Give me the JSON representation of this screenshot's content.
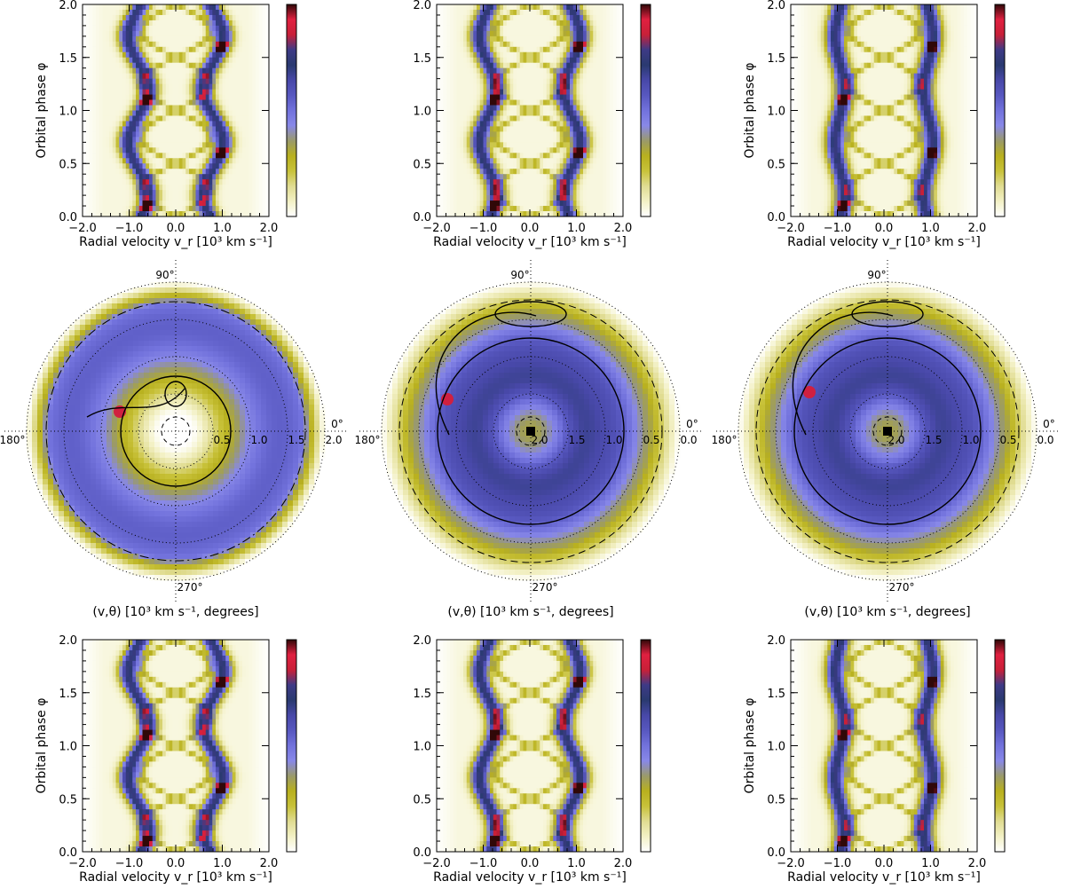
{
  "colors": {
    "colormap": [
      "#ffffff",
      "#f3f1c6",
      "#e0dc92",
      "#c8c23a",
      "#b8b01e",
      "#9a9a6a",
      "#8888e8",
      "#7272dc",
      "#5858c0",
      "#4848a8",
      "#2a3a70",
      "#3e3a86",
      "#c82038",
      "#e02040",
      "#300808"
    ],
    "curve": "#000000"
  },
  "labels": {
    "tomogram_xlabel": "(v,θ) [10³ km s⁻¹, degrees]",
    "trail_xlabel": "Radial velocity v_r [10³ km s⁻¹]",
    "trail_ylabel": "Orbital phase φ",
    "angle_90": "90°",
    "angle_0": "0°",
    "angle_180": "180°",
    "angle_270": "270°"
  },
  "chart_data": [
    {
      "id": "trail-top-1",
      "type": "heatmap",
      "xlabel": "Radial velocity v_r [10³ km s⁻¹]",
      "ylabel": "Orbital phase φ",
      "xlim": [
        -2.0,
        2.0
      ],
      "ylim": [
        0.0,
        2.0
      ],
      "xticks": [
        "−2.0",
        "−1.0",
        "0.0",
        "1.0",
        "2.0"
      ],
      "yticks": [
        "0.0",
        "0.5",
        "1.0",
        "1.5",
        "2.0"
      ],
      "s_waves": [
        {
          "center": -0.8,
          "amplitude": 0.22,
          "phase0": 0.05
        },
        {
          "center": 0.8,
          "amplitude": 0.22,
          "phase0": 0.55
        }
      ],
      "colorbar": true
    },
    {
      "id": "trail-top-2",
      "type": "heatmap",
      "xlabel": "Radial velocity v_r [10³ km s⁻¹]",
      "ylabel": "",
      "xlim": [
        -2.0,
        2.0
      ],
      "ylim": [
        0.0,
        2.0
      ],
      "xticks": [
        "−2.0",
        "−1.0",
        "0.0",
        "1.0",
        "2.0"
      ],
      "yticks": [
        "0.0",
        "0.5",
        "1.0",
        "1.5",
        "2.0"
      ],
      "s_waves": [
        {
          "center": -0.9,
          "amplitude": 0.18,
          "phase0": 0.05
        },
        {
          "center": 0.9,
          "amplitude": 0.18,
          "phase0": 0.55
        }
      ],
      "colorbar": true
    },
    {
      "id": "trail-top-3",
      "type": "heatmap",
      "xlabel": "Radial velocity v_r [10³ km s⁻¹]",
      "ylabel": "Orbital phase φ",
      "xlim": [
        -2.0,
        2.0
      ],
      "ylim": [
        0.0,
        2.0
      ],
      "xticks": [
        "−2.0",
        "−1.0",
        "0.0",
        "1.0",
        "2.0"
      ],
      "yticks": [
        "0.0",
        "0.5",
        "1.0",
        "1.5",
        "2.0"
      ],
      "s_waves": [
        {
          "center": -0.95,
          "amplitude": 0.1,
          "phase0": 0.05
        },
        {
          "center": 0.95,
          "amplitude": 0.1,
          "phase0": 0.55
        }
      ],
      "colorbar": true
    },
    {
      "id": "tomogram-1",
      "type": "heatmap",
      "xlabel": "(v,θ) [10³ km s⁻¹, degrees]",
      "radial_ticks": [
        "0.5",
        "1.0",
        "1.5",
        "2.0"
      ],
      "inverse": false
    },
    {
      "id": "tomogram-2",
      "type": "heatmap",
      "xlabel": "(v,θ) [10³ km s⁻¹, degrees]",
      "radial_ticks": [
        "2.0",
        "1.5",
        "1.0",
        "0.5",
        "0.0"
      ],
      "inverse": true
    },
    {
      "id": "tomogram-3",
      "type": "heatmap",
      "xlabel": "(v,θ) [10³ km s⁻¹, degrees]",
      "radial_ticks": [
        "2.0",
        "1.5",
        "1.0",
        "0.5",
        "0.0"
      ],
      "inverse": true
    },
    {
      "id": "trail-bottom-1",
      "type": "heatmap",
      "xlabel": "Radial velocity v_r [10³ km s⁻¹]",
      "ylabel": "Orbital phase φ",
      "xlim": [
        -2.0,
        2.0
      ],
      "ylim": [
        0.0,
        2.0
      ],
      "xticks": [
        "−2.0",
        "−1.0",
        "0.0",
        "1.0",
        "2.0"
      ],
      "yticks": [
        "0.0",
        "0.5",
        "1.0",
        "1.5",
        "2.0"
      ],
      "s_waves": [
        {
          "center": -0.8,
          "amplitude": 0.22,
          "phase0": 0.05
        },
        {
          "center": 0.8,
          "amplitude": 0.22,
          "phase0": 0.55
        }
      ],
      "colorbar": true
    },
    {
      "id": "trail-bottom-2",
      "type": "heatmap",
      "xlabel": "Radial velocity v_r [10³ km s⁻¹]",
      "ylabel": "",
      "xlim": [
        -2.0,
        2.0
      ],
      "ylim": [
        0.0,
        2.0
      ],
      "xticks": [
        "−2.0",
        "−1.0",
        "0.0",
        "1.0",
        "2.0"
      ],
      "yticks": [
        "0.0",
        "0.5",
        "1.0",
        "1.5",
        "2.0"
      ],
      "s_waves": [
        {
          "center": -0.9,
          "amplitude": 0.18,
          "phase0": 0.05
        },
        {
          "center": 0.9,
          "amplitude": 0.18,
          "phase0": 0.55
        }
      ],
      "colorbar": true
    },
    {
      "id": "trail-bottom-3",
      "type": "heatmap",
      "xlabel": "Radial velocity v_r [10³ km s⁻¹]",
      "ylabel": "Orbital phase φ",
      "xlim": [
        -2.0,
        2.0
      ],
      "ylim": [
        0.0,
        2.0
      ],
      "xticks": [
        "−2.0",
        "−1.0",
        "0.0",
        "1.0",
        "2.0"
      ],
      "yticks": [
        "0.0",
        "0.5",
        "1.0",
        "1.5",
        "2.0"
      ],
      "s_waves": [
        {
          "center": -0.95,
          "amplitude": 0.1,
          "phase0": 0.05
        },
        {
          "center": 0.95,
          "amplitude": 0.1,
          "phase0": 0.55
        }
      ],
      "colorbar": true
    }
  ]
}
